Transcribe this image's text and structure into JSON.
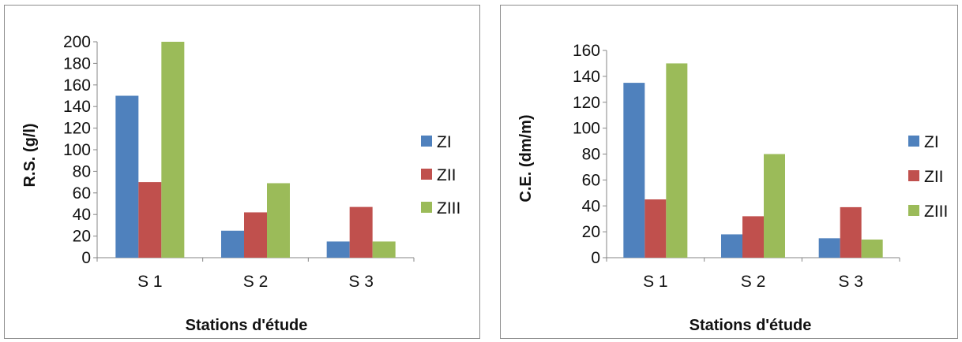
{
  "chart_data": [
    {
      "type": "bar",
      "title": "",
      "xlabel": "Stations d'étude",
      "ylabel": "R.S. (g/l)",
      "categories": [
        "S 1",
        "S 2",
        "S 3"
      ],
      "ylim": [
        0,
        200
      ],
      "yticks": [
        "0",
        "20",
        "40",
        "60",
        "80",
        "100",
        "120",
        "140",
        "160",
        "180",
        "200"
      ],
      "grid": false,
      "legend_position": "right",
      "series": [
        {
          "name": "ZI",
          "color": "#4f81bd",
          "values": [
            150,
            25,
            15
          ]
        },
        {
          "name": "ZII",
          "color": "#c0504d",
          "values": [
            70,
            42,
            47
          ]
        },
        {
          "name": "ZIII",
          "color": "#9bbb59",
          "values": [
            200,
            69,
            15
          ]
        }
      ]
    },
    {
      "type": "bar",
      "title": "",
      "xlabel": "Stations  d'étude",
      "ylabel": "C.E. (dm/m)",
      "categories": [
        "S 1",
        "S 2",
        "S 3"
      ],
      "ylim": [
        0,
        160
      ],
      "yticks": [
        "0",
        "20",
        "40",
        "60",
        "80",
        "100",
        "120",
        "140",
        "160"
      ],
      "grid": false,
      "legend_position": "right",
      "series": [
        {
          "name": "ZI",
          "color": "#4f81bd",
          "values": [
            135,
            18,
            15
          ]
        },
        {
          "name": "ZII",
          "color": "#c0504d",
          "values": [
            45,
            32,
            39
          ]
        },
        {
          "name": "ZIII",
          "color": "#9bbb59",
          "values": [
            150,
            80,
            14
          ]
        }
      ]
    }
  ]
}
